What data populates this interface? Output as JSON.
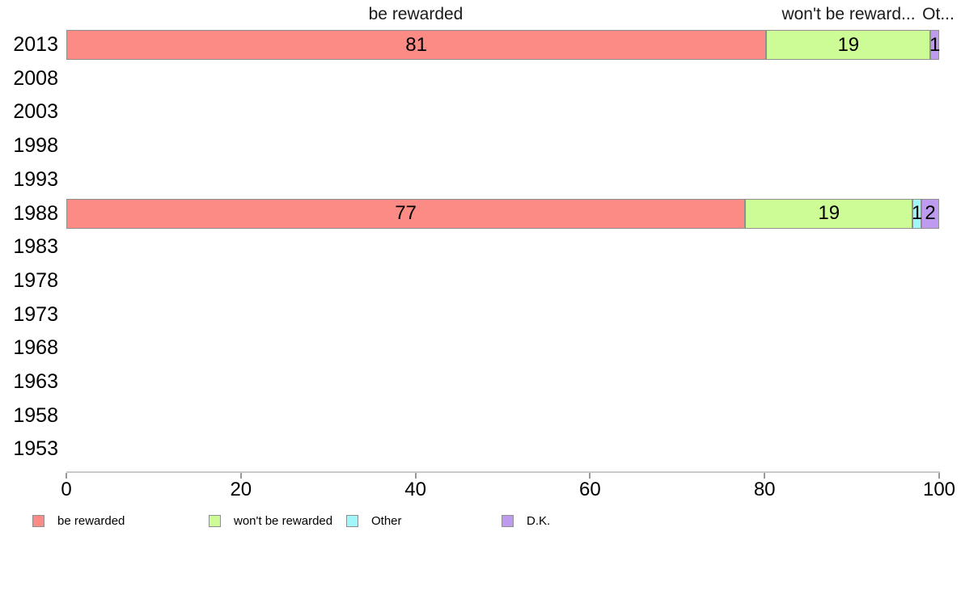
{
  "chart_data": {
    "type": "bar",
    "orientation": "horizontal",
    "stacked": true,
    "normalized_to_100_percent": true,
    "title": "",
    "xlabel": "",
    "ylabel": "",
    "xlim": [
      0,
      100
    ],
    "x_ticks": [
      "0",
      "20",
      "40",
      "60",
      "80",
      "100"
    ],
    "grid": false,
    "legend_position": "bottom",
    "column_headers": [
      "be rewarded",
      "won't be reward...",
      "Ot..."
    ],
    "categories": [
      "2013",
      "2008",
      "2003",
      "1998",
      "1993",
      "1988",
      "1983",
      "1978",
      "1973",
      "1968",
      "1963",
      "1958",
      "1953"
    ],
    "series": [
      {
        "name": "be rewarded",
        "color": "#FC8B85",
        "values": [
          81,
          null,
          null,
          null,
          null,
          77,
          null,
          null,
          null,
          null,
          null,
          null,
          null
        ]
      },
      {
        "name": "won't be rewarded",
        "color": "#CDFB96",
        "values": [
          19,
          null,
          null,
          null,
          null,
          19,
          null,
          null,
          null,
          null,
          null,
          null,
          null
        ]
      },
      {
        "name": "Other",
        "color": "#A0F6F8",
        "values": [
          null,
          null,
          null,
          null,
          null,
          1,
          null,
          null,
          null,
          null,
          null,
          null,
          null
        ]
      },
      {
        "name": "D.K.",
        "color": "#BE9BEF",
        "values": [
          1,
          null,
          null,
          null,
          null,
          2,
          null,
          null,
          null,
          null,
          null,
          null,
          null
        ]
      }
    ],
    "legend": [
      {
        "label": "be rewarded",
        "color": "#FC8B85"
      },
      {
        "label": "won't be rewarded",
        "color": "#CDFB96"
      },
      {
        "label": "Other",
        "color": "#A0F6F8"
      },
      {
        "label": "D.K.",
        "color": "#BE9BEF"
      }
    ],
    "colors": {
      "segment_border": "#8f8f8f",
      "axis_line": "#c9c9c9",
      "axis_tick": "#999999",
      "text": "#000000"
    }
  }
}
